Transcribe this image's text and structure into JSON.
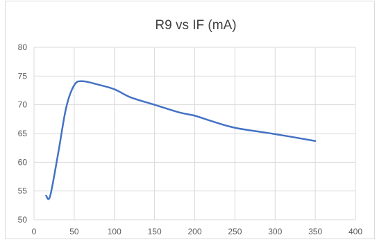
{
  "chart_data": {
    "type": "line",
    "title": "R9 vs IF (mA)",
    "xlabel": "",
    "ylabel": "",
    "xlim": [
      0,
      400
    ],
    "ylim": [
      50,
      80
    ],
    "x_ticks": [
      0,
      50,
      100,
      150,
      200,
      250,
      300,
      350,
      400
    ],
    "y_ticks": [
      50,
      55,
      60,
      65,
      70,
      75,
      80
    ],
    "grid": true,
    "legend": "none",
    "series": [
      {
        "color": "#4472c4",
        "smooth": true,
        "points": [
          [
            15,
            54.2
          ],
          [
            20,
            54.1
          ],
          [
            30,
            61.5
          ],
          [
            40,
            69.5
          ],
          [
            50,
            73.4
          ],
          [
            60,
            74.1
          ],
          [
            80,
            73.5
          ],
          [
            100,
            72.7
          ],
          [
            120,
            71.3
          ],
          [
            150,
            70.0
          ],
          [
            180,
            68.7
          ],
          [
            200,
            68.1
          ],
          [
            220,
            67.2
          ],
          [
            250,
            66.0
          ],
          [
            300,
            64.9
          ],
          [
            350,
            63.7
          ]
        ]
      }
    ]
  }
}
